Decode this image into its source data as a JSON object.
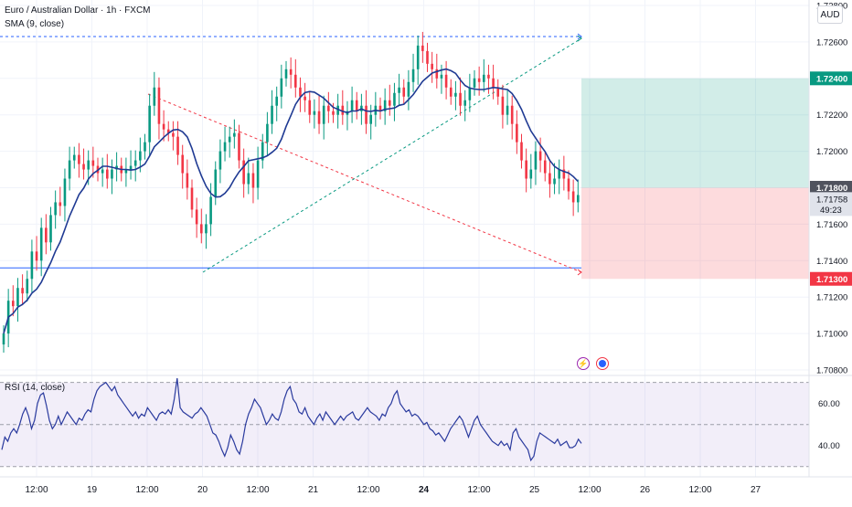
{
  "symbol_line": "Euro / Australian Dollar · 1h · FXCM",
  "indicator_label": "SMA (9, close)",
  "currency": "AUD",
  "rsi_label": "RSI (14, close)",
  "chart_data": [
    {
      "type": "candlestick",
      "title": "Euro / Australian Dollar · 1h · FXCM",
      "overlay": "SMA (9, close)",
      "ylim": [
        1.708,
        1.728
      ],
      "y_ticks": [
        "1.72800",
        "1.72600",
        "1.72400",
        "1.72200",
        "1.72000",
        "1.71800",
        "1.71600",
        "1.71400",
        "1.71200",
        "1.71000",
        "1.70800"
      ],
      "x_ticks": [
        "12:00",
        "19",
        "12:00",
        "20",
        "12:00",
        "21",
        "12:00",
        "24",
        "12:00",
        "25",
        "12:00",
        "26",
        "12:00",
        "27"
      ],
      "close": [
        1.71,
        1.7118,
        1.7115,
        1.7125,
        1.7122,
        1.713,
        1.7145,
        1.714,
        1.7158,
        1.715,
        1.7165,
        1.7172,
        1.717,
        1.7185,
        1.7195,
        1.7198,
        1.7193,
        1.719,
        1.7195,
        1.7192,
        1.7188,
        1.719,
        1.7185,
        1.719,
        1.7192,
        1.7188,
        1.719,
        1.7192,
        1.7195,
        1.72,
        1.7205,
        1.7225,
        1.7235,
        1.7215,
        1.7212,
        1.721,
        1.7208,
        1.7198,
        1.7188,
        1.718,
        1.7168,
        1.716,
        1.7155,
        1.716,
        1.7175,
        1.719,
        1.72,
        1.7205,
        1.7208,
        1.721,
        1.7195,
        1.7182,
        1.7188,
        1.718,
        1.7195,
        1.7205,
        1.7215,
        1.7225,
        1.723,
        1.724,
        1.7245,
        1.7242,
        1.7235,
        1.723,
        1.7228,
        1.722,
        1.7222,
        1.7215,
        1.7225,
        1.7222,
        1.722,
        1.7225,
        1.722,
        1.7222,
        1.7228,
        1.7222,
        1.7225,
        1.7215,
        1.722,
        1.7225,
        1.7222,
        1.7228,
        1.7225,
        1.7232,
        1.7235,
        1.723,
        1.7238,
        1.7245,
        1.7258,
        1.7255,
        1.7248,
        1.7245,
        1.724,
        1.7242,
        1.7235,
        1.723,
        1.7232,
        1.7225,
        1.7228,
        1.7235,
        1.724,
        1.7238,
        1.7242,
        1.724,
        1.7235,
        1.723,
        1.722,
        1.7225,
        1.7215,
        1.7205,
        1.7195,
        1.7185,
        1.719,
        1.72,
        1.7195,
        1.7188,
        1.7182,
        1.7185,
        1.719,
        1.7185,
        1.7178,
        1.7172,
        1.7176
      ],
      "series": [
        {
          "name": "SMA (9, close)",
          "color": "#1f3a93"
        }
      ],
      "price_labels": [
        {
          "label": "1.72400",
          "color": "#089981",
          "kind": "take-profit"
        },
        {
          "label": "1.71800",
          "color": "#50535e",
          "kind": "entry"
        },
        {
          "label": "1.71758",
          "countdown": "49:23",
          "color": "#e0e3eb",
          "kind": "last-price"
        },
        {
          "label": "1.71300",
          "color": "#f23645",
          "kind": "stop-loss"
        }
      ],
      "position": {
        "entry": 1.718,
        "take_profit": 1.724,
        "stop_loss": 1.713
      },
      "horizontal_line": 1.7136,
      "colors": {
        "up": "#089981",
        "down": "#f23645",
        "sma": "#1f3a93",
        "grid": "#f0f3fa"
      }
    },
    {
      "type": "line",
      "title": "RSI (14, close)",
      "ylim": [
        26,
        72
      ],
      "y_ticks": [
        "60.00",
        "40.00"
      ],
      "band": [
        30,
        70
      ],
      "midline": 50,
      "values": [
        38,
        44,
        42,
        46,
        48,
        46,
        50,
        55,
        58,
        54,
        48,
        52,
        60,
        64,
        65,
        59,
        52,
        48,
        50,
        54,
        50,
        53,
        56,
        54,
        52,
        50,
        53,
        52,
        55,
        57,
        56,
        62,
        66,
        68,
        69,
        70,
        68,
        66,
        68,
        64,
        62,
        60,
        58,
        56,
        54,
        56,
        53,
        55,
        54,
        58,
        56,
        54,
        52,
        55,
        56,
        55,
        57,
        55,
        62,
        72,
        58,
        56,
        55,
        54,
        53,
        55,
        56,
        58,
        56,
        54,
        50,
        46,
        45,
        42,
        38,
        35,
        39,
        45,
        42,
        38,
        36,
        42,
        50,
        55,
        58,
        62,
        60,
        58,
        54,
        50,
        52,
        55,
        53,
        52,
        56,
        62,
        66,
        68,
        62,
        60,
        56,
        55,
        58,
        54,
        52,
        50,
        53,
        55,
        52,
        56,
        54,
        52,
        50,
        52,
        54,
        52,
        54,
        55,
        56,
        53,
        52,
        54,
        56,
        58,
        56,
        55,
        54,
        52,
        55,
        54,
        58,
        60,
        64,
        66,
        60,
        58,
        56,
        57,
        54,
        55,
        54,
        52,
        50,
        51,
        48,
        47,
        45,
        46,
        44,
        42,
        45,
        48,
        50,
        52,
        54,
        52,
        48,
        44,
        48,
        52,
        54,
        50,
        48,
        46,
        44,
        42,
        41,
        40,
        42,
        40,
        41,
        38,
        46,
        48,
        44,
        42,
        40,
        38,
        33,
        35,
        42,
        46,
        45,
        44,
        43,
        42,
        41,
        43,
        40,
        41,
        42,
        39,
        39,
        40,
        43,
        41
      ]
    }
  ]
}
